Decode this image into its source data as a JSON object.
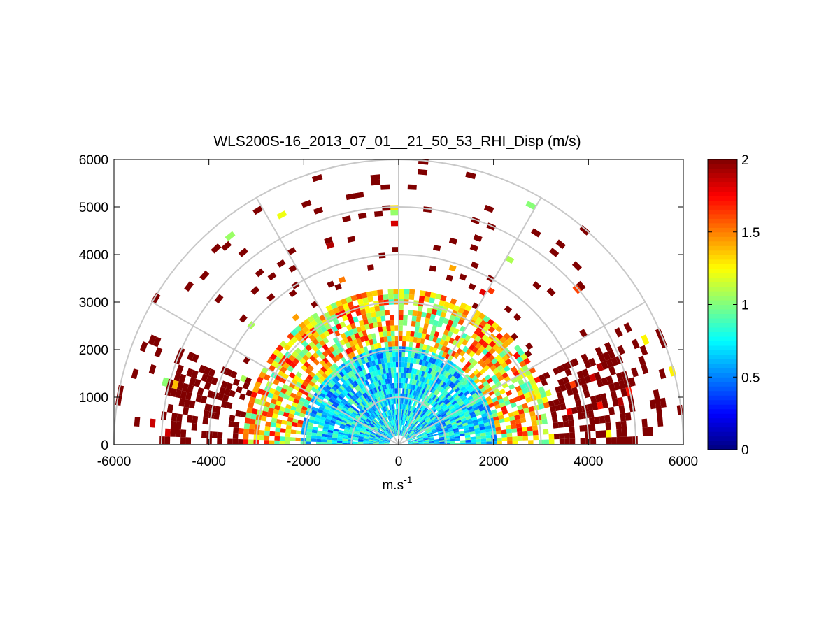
{
  "chart_data": {
    "type": "heatmap",
    "subtype": "polar-rhi-sector",
    "title": "WLS200S-16_2013_07_01__21_50_53_RHI_Disp (m/s)",
    "xlabel": "m.s",
    "xlabel_sup": "-1",
    "ylabel": "",
    "xlim": [
      -6000,
      6000
    ],
    "ylim": [
      0,
      6000
    ],
    "x_ticks": [
      "-6000",
      "-4000",
      "-2000",
      "0",
      "2000",
      "4000",
      "6000"
    ],
    "y_ticks": [
      "0",
      "1000",
      "2000",
      "3000",
      "4000",
      "5000",
      "6000"
    ],
    "polar_grid": {
      "ring_radii": [
        1000,
        2000,
        3000,
        4000,
        5000,
        6000
      ],
      "spoke_angles_deg": [
        0,
        30,
        60,
        90,
        120,
        150,
        180
      ],
      "color": "#c8c8c8"
    },
    "colorbar": {
      "colormap": "jet",
      "range": [
        0,
        2
      ],
      "ticks": [
        "0",
        "0.5",
        "1",
        "1.5",
        "2"
      ]
    },
    "value_pattern": {
      "description_of_regions": [
        {
          "range_m": [
            0,
            2000
          ],
          "typical_value": 0.7
        },
        {
          "range_m": [
            2000,
            3200
          ],
          "typical_value": 1.3
        },
        {
          "range_m": [
            3200,
            6000
          ],
          "typical_value": 2.0
        }
      ]
    }
  }
}
